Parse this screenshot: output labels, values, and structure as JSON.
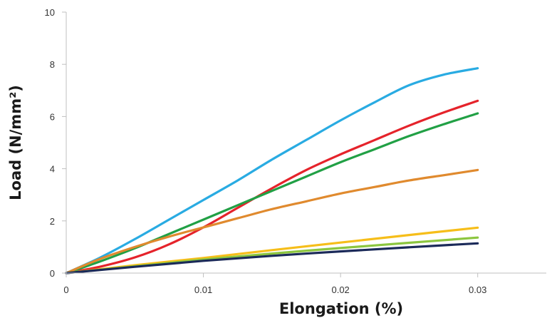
{
  "chart_data": {
    "type": "line",
    "title": "",
    "xlabel": "Elongation (%)",
    "ylabel": "Load (N/mm²)",
    "xlim": [
      0,
      0.035
    ],
    "ylim": [
      0,
      10
    ],
    "x_ticks": [
      0,
      0.01,
      0.02,
      0.03
    ],
    "x_tick_labels": [
      "0",
      "0.01",
      "0.02",
      "0.03"
    ],
    "y_ticks": [
      0,
      2,
      4,
      6,
      8,
      10
    ],
    "y_tick_labels": [
      "0",
      "2",
      "4",
      "6",
      "8",
      "10"
    ],
    "grid": false,
    "legend": "none",
    "series": [
      {
        "color": "#29abe2",
        "x": [
          0,
          0.0025,
          0.005,
          0.0075,
          0.01,
          0.0125,
          0.015,
          0.0175,
          0.02,
          0.0225,
          0.025,
          0.0275,
          0.03
        ],
        "y": [
          0,
          0.6,
          1.3,
          2.05,
          2.8,
          3.55,
          4.35,
          5.1,
          5.85,
          6.55,
          7.2,
          7.6,
          7.85
        ]
      },
      {
        "color": "#e5232b",
        "x": [
          0,
          0.0025,
          0.005,
          0.0075,
          0.01,
          0.0125,
          0.015,
          0.0175,
          0.02,
          0.0225,
          0.025,
          0.0275,
          0.03
        ],
        "y": [
          0,
          0.25,
          0.6,
          1.1,
          1.75,
          2.5,
          3.25,
          3.95,
          4.55,
          5.1,
          5.65,
          6.15,
          6.6
        ]
      },
      {
        "color": "#21a045",
        "x": [
          0,
          0.0025,
          0.005,
          0.0075,
          0.01,
          0.0125,
          0.015,
          0.0175,
          0.02,
          0.0225,
          0.025,
          0.0275,
          0.03
        ],
        "y": [
          0,
          0.45,
          0.95,
          1.5,
          2.05,
          2.6,
          3.15,
          3.7,
          4.25,
          4.75,
          5.25,
          5.7,
          6.12
        ]
      },
      {
        "color": "#e08a2e",
        "x": [
          0,
          0.0025,
          0.005,
          0.0075,
          0.01,
          0.0125,
          0.015,
          0.0175,
          0.02,
          0.0225,
          0.025,
          0.0275,
          0.03
        ],
        "y": [
          0,
          0.55,
          1.0,
          1.4,
          1.75,
          2.1,
          2.45,
          2.75,
          3.05,
          3.3,
          3.55,
          3.75,
          3.95
        ]
      },
      {
        "color": "#f6be1a",
        "x": [
          0,
          0.005,
          0.01,
          0.015,
          0.02,
          0.025,
          0.03
        ],
        "y": [
          0,
          0.3,
          0.58,
          0.88,
          1.17,
          1.46,
          1.74
        ]
      },
      {
        "color": "#8cc63f",
        "x": [
          0,
          0.005,
          0.01,
          0.015,
          0.02,
          0.025,
          0.03
        ],
        "y": [
          0,
          0.26,
          0.52,
          0.75,
          0.96,
          1.16,
          1.36
        ]
      },
      {
        "color": "#1b2a59",
        "x": [
          0,
          0.005,
          0.01,
          0.015,
          0.02,
          0.025,
          0.03
        ],
        "y": [
          0,
          0.24,
          0.47,
          0.66,
          0.83,
          0.99,
          1.14
        ]
      }
    ]
  }
}
